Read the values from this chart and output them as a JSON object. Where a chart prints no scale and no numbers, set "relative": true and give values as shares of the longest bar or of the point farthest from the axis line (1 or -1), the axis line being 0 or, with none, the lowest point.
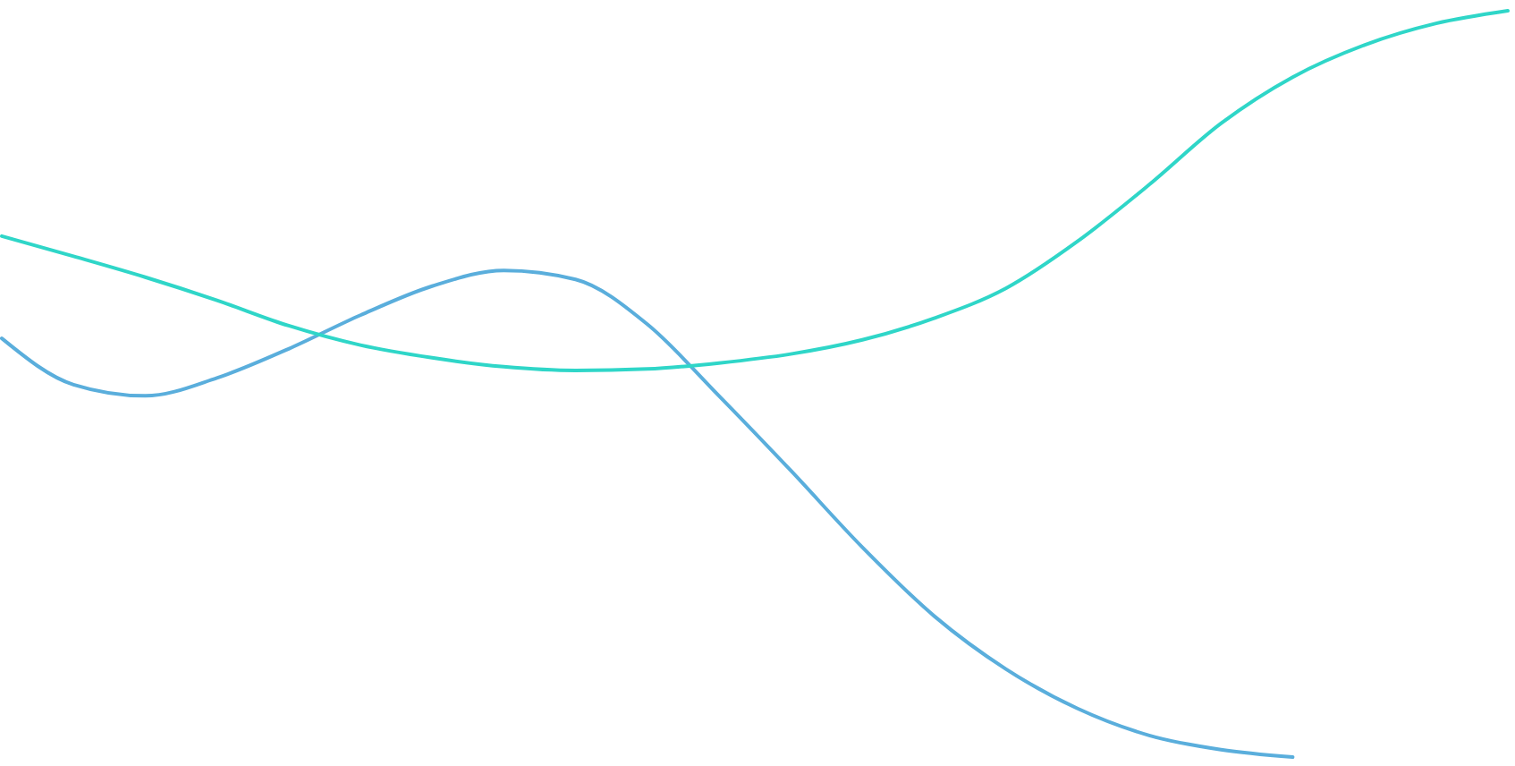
{
  "chart_data": {
    "type": "line",
    "relative": true,
    "tick_labels": false,
    "grid": false,
    "categories": [
      null,
      null,
      null,
      null,
      null,
      null,
      null,
      null,
      null,
      null,
      null,
      null,
      null,
      null,
      null,
      null,
      null,
      null,
      null,
      null,
      null,
      null
    ],
    "series": [
      {
        "color": "#5aaedc",
        "values": [
          0.561,
          0.499,
          0.484,
          0.508,
          0.547,
          0.592,
          0.631,
          0.652,
          0.64,
          0.58,
          0.484,
          0.384,
          0.281,
          0.189,
          0.118,
          0.065,
          0.029,
          0.01,
          0,
          null,
          null,
          null
        ]
      },
      {
        "color": "#2fd6c8",
        "values": [
          0.698,
          0.671,
          0.643,
          0.612,
          0.578,
          0.552,
          0.535,
          0.523,
          0.518,
          0.52,
          0.528,
          0.54,
          0.559,
          0.588,
          0.628,
          0.691,
          0.767,
          0.849,
          0.911,
          0.954,
          0.983,
          1
        ]
      }
    ]
  }
}
